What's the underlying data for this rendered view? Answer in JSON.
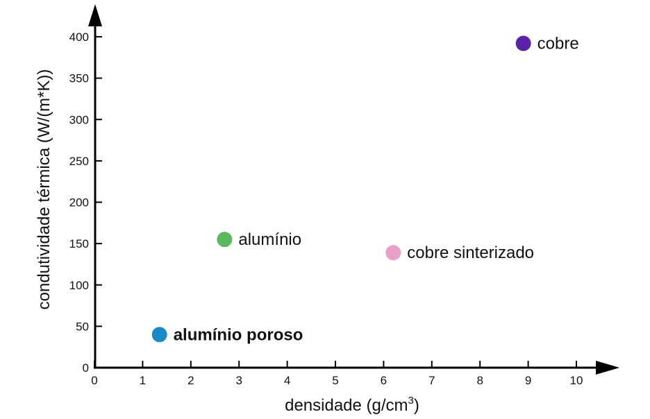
{
  "chart_data": {
    "type": "scatter",
    "xlabel_main": "densidade (g/cm",
    "xlabel_sup": "3",
    "xlabel_end": ")",
    "ylabel": "condutividade térmica (W/(m*K))",
    "xlim": [
      0,
      10
    ],
    "ylim": [
      0,
      400
    ],
    "xticks": [
      0,
      1,
      2,
      3,
      4,
      5,
      6,
      7,
      8,
      9,
      10
    ],
    "yticks": [
      0,
      50,
      100,
      150,
      200,
      250,
      300,
      350,
      400
    ],
    "grid": false,
    "points": [
      {
        "label": "alumínio poroso",
        "x": 1.35,
        "y": 40,
        "color": "#1a8ac6",
        "bold": true
      },
      {
        "label": "alumínio",
        "x": 2.7,
        "y": 155,
        "color": "#5cb85c",
        "bold": false
      },
      {
        "label": "cobre sinterizado",
        "x": 6.2,
        "y": 139,
        "color": "#e89fc8",
        "bold": false
      },
      {
        "label": "cobre",
        "x": 8.9,
        "y": 392,
        "color": "#5b22a6",
        "bold": false
      }
    ]
  }
}
